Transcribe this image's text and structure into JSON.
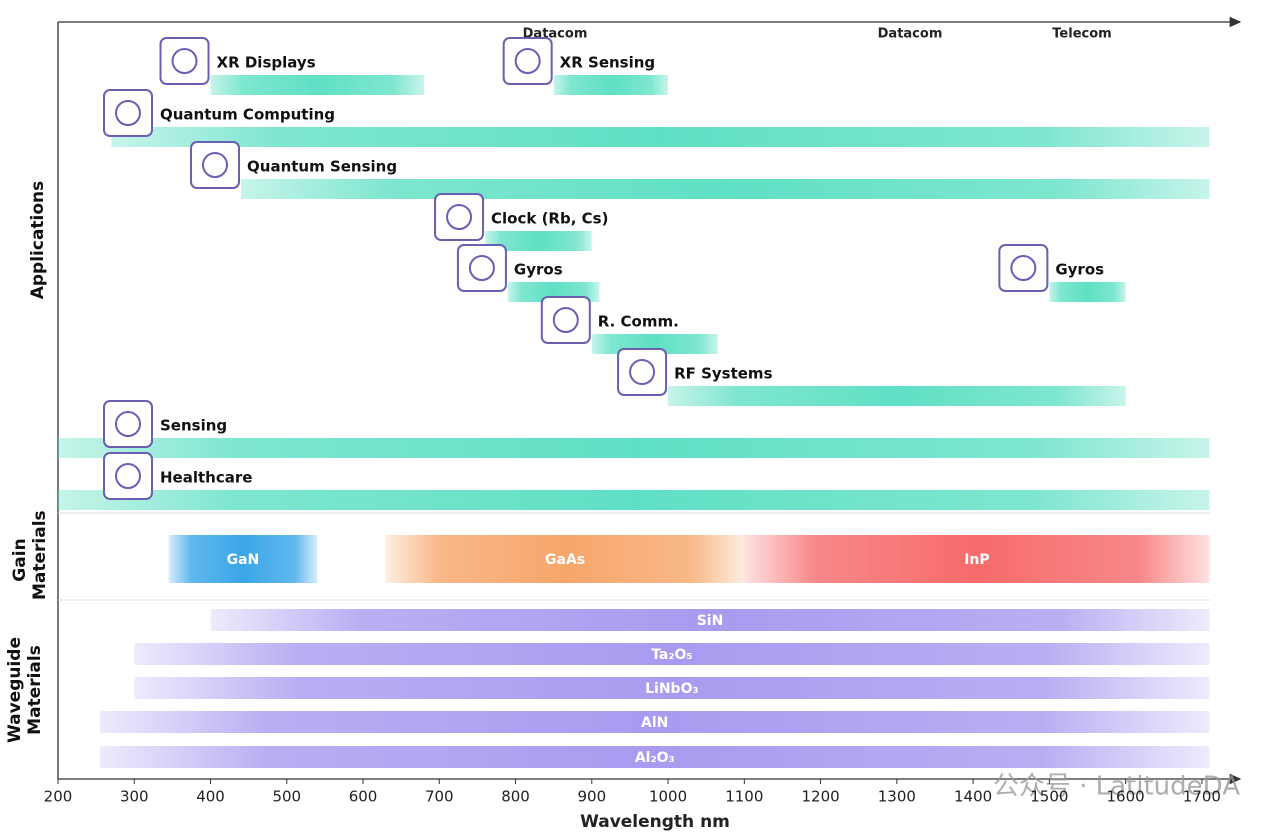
{
  "chart_data": {
    "type": "range",
    "xlabel": "Wavelength nm",
    "xlim": [
      200,
      1750
    ],
    "xticks": [
      200,
      300,
      400,
      500,
      600,
      700,
      800,
      900,
      1000,
      1100,
      1200,
      1300,
      1400,
      1500,
      1600,
      1700
    ],
    "annotations": [
      "Datacom",
      "Datacom",
      "Telecom"
    ],
    "watermark": "公众号 · LatitudeDA",
    "groups": [
      {
        "label": "Applications",
        "items": [
          {
            "name": "XR Displays",
            "start": 400,
            "end": 680,
            "color": "#5fe0c4"
          },
          {
            "name": "XR Sensing",
            "start": 850,
            "end": 1000,
            "color": "#5fe0c4"
          },
          {
            "name": "Quantum Computing",
            "start": 270,
            "end": 1710,
            "color": "#5fe0c4"
          },
          {
            "name": "Quantum Sensing",
            "start": 440,
            "end": 1710,
            "color": "#5fe0c4"
          },
          {
            "name": "Clock (Rb, Cs)",
            "start": 760,
            "end": 900,
            "color": "#5fe0c4"
          },
          {
            "name": "Gyros",
            "start": 790,
            "end": 910,
            "color": "#5fe0c4"
          },
          {
            "name": "Gyros",
            "start": 1500,
            "end": 1600,
            "color": "#5fe0c4"
          },
          {
            "name": "R. Comm.",
            "start": 900,
            "end": 1065,
            "color": "#5fe0c4"
          },
          {
            "name": "RF Systems",
            "start": 1000,
            "end": 1600,
            "color": "#5fe0c4"
          },
          {
            "name": "Sensing",
            "start": 200,
            "end": 1710,
            "color": "#5fe0c4"
          },
          {
            "name": "Healthcare",
            "start": 200,
            "end": 1710,
            "color": "#5fe0c4"
          }
        ]
      },
      {
        "label": "Gain Materials",
        "items": [
          {
            "name": "GaN",
            "start": 345,
            "end": 540,
            "color": "#3aa6e8"
          },
          {
            "name": "GaAs",
            "start": 630,
            "end": 1100,
            "color": "#f7a66a"
          },
          {
            "name": "InP",
            "start": 1100,
            "end": 1710,
            "color": "#f76b6b"
          }
        ]
      },
      {
        "label": "Waveguide Materials",
        "items": [
          {
            "name": "SiN",
            "start": 400,
            "end": 1710,
            "color": "#a99af0"
          },
          {
            "name": "Ta₂O₅",
            "start": 300,
            "end": 1710,
            "color": "#a99af0"
          },
          {
            "name": "LiNbO₃",
            "start": 300,
            "end": 1710,
            "color": "#a99af0"
          },
          {
            "name": "AlN",
            "start": 255,
            "end": 1710,
            "color": "#a99af0"
          },
          {
            "name": "Al₂O₃",
            "start": 255,
            "end": 1710,
            "color": "#a99af0"
          }
        ]
      }
    ]
  }
}
